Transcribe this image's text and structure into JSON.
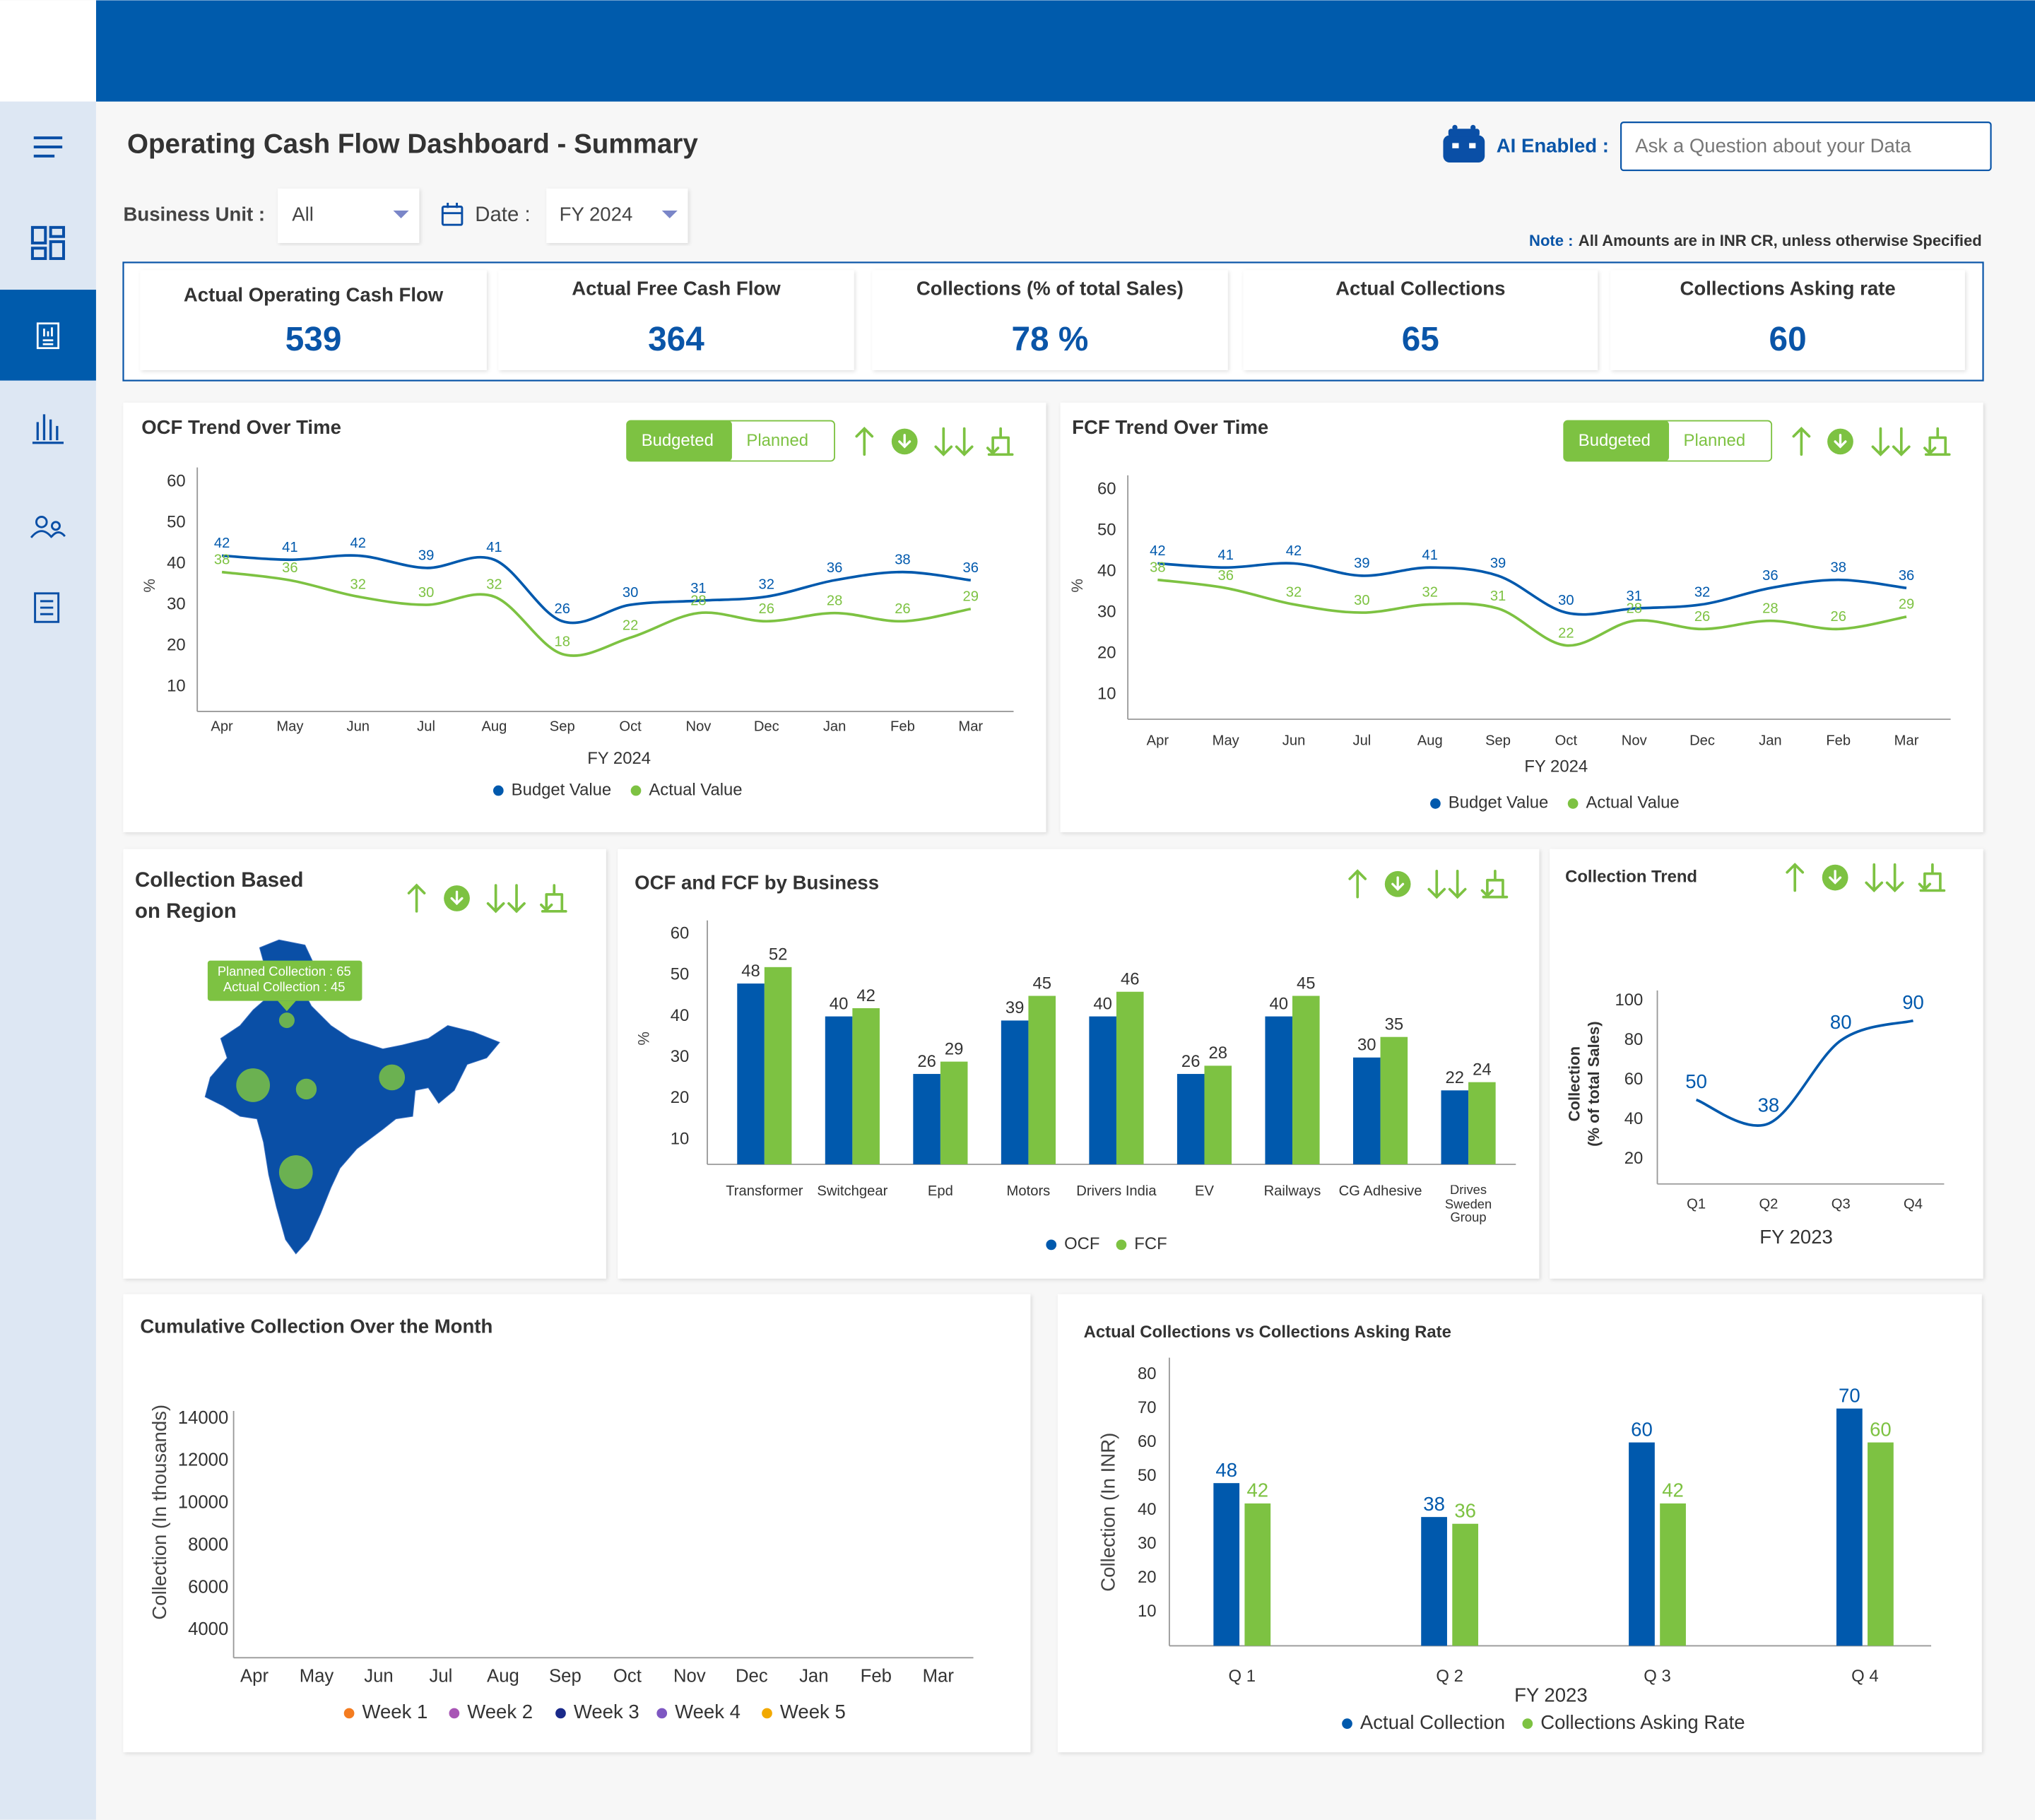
{
  "header": {
    "title": "Operating Cash Flow Dashboard - Summary",
    "ai_label": "AI Enabled :",
    "search_placeholder": "Ask a Question about your Data"
  },
  "filters": [
    {
      "label": "Business Unit :",
      "value": "All"
    },
    {
      "label": "Date :",
      "value": "FY 2024"
    }
  ],
  "note": {
    "label": "Note :",
    "text": "All Amounts are in INR CR, unless otherwise Specified"
  },
  "kpis": [
    {
      "label": "Actual Operating Cash Flow",
      "value": 539
    },
    {
      "label": "Actual Free Cash Flow",
      "value": 364
    },
    {
      "label": "Collections (% of total Sales)",
      "value": "78 %"
    },
    {
      "label": "Actual Collections",
      "value": 65
    },
    {
      "label": "Collections Asking rate",
      "value": 60
    }
  ],
  "region_panel": {
    "title": "Collection Based on Region",
    "tooltip": [
      "Planned Collection : 65",
      "Actual Collection : 45"
    ]
  },
  "chart_data": [
    {
      "type": "line",
      "title": "OCF Trend Over Time",
      "toggle": [
        "Budgeted",
        "Planned"
      ],
      "categories": [
        "Apr",
        "May",
        "Jun",
        "Jul",
        "Aug",
        "Sep",
        "Oct",
        "Nov",
        "Dec",
        "Jan",
        "Feb",
        "Mar"
      ],
      "x_label": "FY 2024",
      "y_label": "%",
      "ylim": [
        4,
        64
      ],
      "yticks": [
        10,
        20,
        30,
        40,
        50,
        60
      ],
      "series": [
        {
          "name": "Budget Value",
          "color": "#0059ad",
          "values": [
            42,
            41,
            42,
            39,
            41,
            26,
            30,
            31,
            32,
            36,
            38,
            36
          ]
        },
        {
          "name": "Actual Value",
          "color": "#7dc242",
          "values": [
            38,
            36,
            32,
            30,
            32,
            18,
            22,
            28,
            26,
            28,
            26,
            29
          ]
        }
      ]
    },
    {
      "type": "line",
      "title": "FCF Trend Over Time",
      "toggle": [
        "Budgeted",
        "Planned"
      ],
      "categories": [
        "Apr",
        "May",
        "Jun",
        "Jul",
        "Aug",
        "Sep",
        "Oct",
        "Nov",
        "Dec",
        "Jan",
        "Feb",
        "Mar"
      ],
      "x_label": "FY 2024",
      "y_label": "%",
      "ylim": [
        4,
        64
      ],
      "yticks": [
        10,
        20,
        30,
        40,
        50,
        60
      ],
      "series": [
        {
          "name": "Budget Value",
          "color": "#0059ad",
          "values": [
            42,
            41,
            42,
            39,
            41,
            39,
            30,
            31,
            32,
            36,
            38,
            36
          ]
        },
        {
          "name": "Actual Value",
          "color": "#7dc242",
          "values": [
            38,
            36,
            32,
            30,
            32,
            31,
            22,
            28,
            26,
            28,
            26,
            29
          ]
        }
      ]
    },
    {
      "type": "bar",
      "title": "OCF and FCF by Business",
      "categories": [
        "Transformer",
        "Switchgear",
        "Epd",
        "Motors",
        "Drivers India",
        "EV",
        "Railways",
        "CG Adhesive",
        "Drives Sweden Group"
      ],
      "y_label": "%",
      "ylim": [
        4,
        64
      ],
      "yticks": [
        10,
        20,
        30,
        40,
        50,
        60
      ],
      "series": [
        {
          "name": "OCF",
          "color": "#0059ad",
          "values": [
            48,
            40,
            26,
            39,
            40,
            26,
            40,
            30,
            22
          ]
        },
        {
          "name": "FCF",
          "color": "#7dc242",
          "values": [
            52,
            42,
            29,
            45,
            46,
            28,
            45,
            35,
            24
          ]
        }
      ]
    },
    {
      "type": "line",
      "title": "Collection Trend",
      "categories": [
        "Q1",
        "Q2",
        "Q3",
        "Q4"
      ],
      "x_label": "FY 2023",
      "y_label": [
        "Collection",
        "(% of total Sales)"
      ],
      "ylim": [
        7.5,
        105
      ],
      "yticks": [
        20,
        40,
        60,
        80,
        100
      ],
      "color": "#0059ad",
      "values": [
        50,
        38,
        80,
        90
      ]
    },
    {
      "type": "line",
      "title": "Cumulative Collection Over the Month",
      "categories": [
        "Apr",
        "May",
        "Jun",
        "Jul",
        "Aug",
        "Sep",
        "Oct",
        "Nov",
        "Dec",
        "Jan",
        "Feb",
        "Mar"
      ],
      "y_label": "Collection (In thousands)",
      "ylim": [
        2700,
        14400
      ],
      "yticks": [
        4000,
        6000,
        8000,
        10000,
        12000,
        14000
      ],
      "series": [
        {
          "name": "Week 1",
          "color": "#f47c20",
          "values": [
            null,
            null,
            null,
            null,
            null,
            null,
            null,
            null,
            null,
            null,
            null,
            null
          ]
        },
        {
          "name": "Week 2",
          "color": "#a855b5",
          "values": [
            null,
            null,
            null,
            null,
            null,
            null,
            null,
            null,
            null,
            null,
            null,
            null
          ]
        },
        {
          "name": "Week 3",
          "color": "#1a2a8a",
          "values": [
            null,
            null,
            null,
            null,
            null,
            null,
            null,
            null,
            null,
            null,
            null,
            null
          ]
        },
        {
          "name": "Week 4",
          "color": "#7e57c2",
          "values": [
            null,
            null,
            null,
            null,
            null,
            null,
            null,
            null,
            null,
            null,
            null,
            null
          ]
        },
        {
          "name": "Week 5",
          "color": "#f2a900",
          "values": [
            null,
            null,
            null,
            null,
            null,
            null,
            null,
            null,
            null,
            null,
            null,
            null
          ]
        }
      ]
    },
    {
      "type": "bar",
      "title": "Actual Collections vs Collections Asking Rate",
      "categories": [
        "Q 1",
        "Q 2",
        "Q 3",
        "Q 4"
      ],
      "x_label": "FY 2023",
      "y_label": "Collection (In INR)",
      "ylim": [
        0,
        85
      ],
      "yticks": [
        10,
        20,
        30,
        40,
        50,
        60,
        70,
        80
      ],
      "series": [
        {
          "name": "Actual Collection",
          "color": "#0059ad",
          "values": [
            48,
            38,
            60,
            70
          ]
        },
        {
          "name": "Collections Asking Rate",
          "color": "#7dc242",
          "values": [
            42,
            36,
            42,
            60
          ]
        }
      ]
    }
  ]
}
